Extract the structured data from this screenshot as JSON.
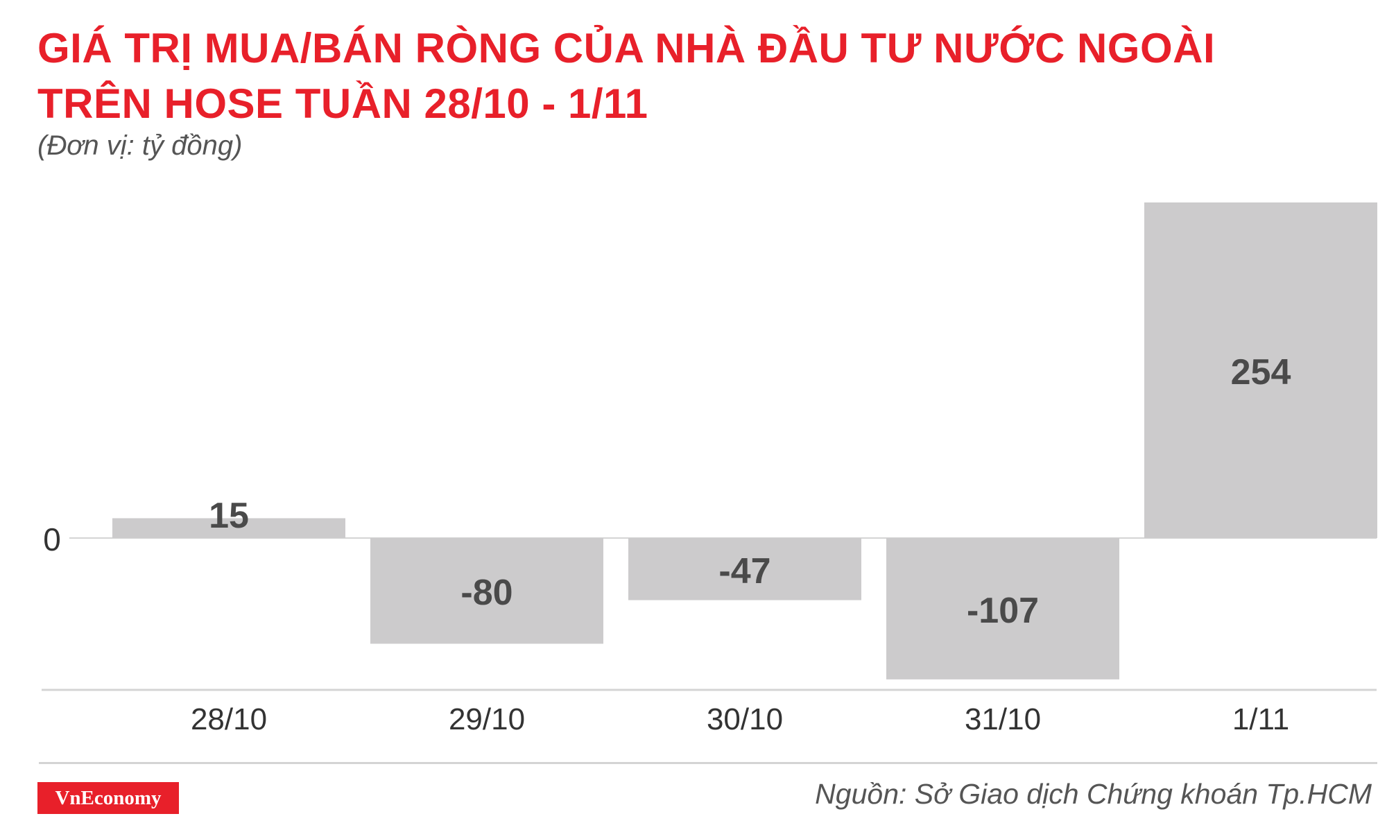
{
  "header": {
    "title_line1": "GIÁ TRỊ MUA/BÁN RÒNG CỦA NHÀ ĐẦU TƯ NƯỚC NGOÀI",
    "title_line2": "TRÊN HOSE TUẦN 28/10 - 1/11",
    "unit": "(Đơn vị: tỷ đồng)"
  },
  "footer": {
    "brand": "VnEconomy",
    "source": "Nguồn: Sở Giao dịch Chứng khoán Tp.HCM"
  },
  "colors": {
    "title": "#e8202a",
    "bar": "#cccbcc",
    "bar_label": "#4a4a4a",
    "axis": "#d4d4d4"
  },
  "chart_data": {
    "type": "bar",
    "categories": [
      "28/10",
      "29/10",
      "30/10",
      "31/10",
      "1/11"
    ],
    "values": [
      15,
      -80,
      -47,
      -107,
      254
    ],
    "data_labels": [
      "15",
      "-80",
      "-47",
      "-107",
      "254"
    ],
    "ytick_labels": [
      "0"
    ],
    "ylim": [
      -117,
      254
    ],
    "grid": false,
    "legend": "none"
  }
}
